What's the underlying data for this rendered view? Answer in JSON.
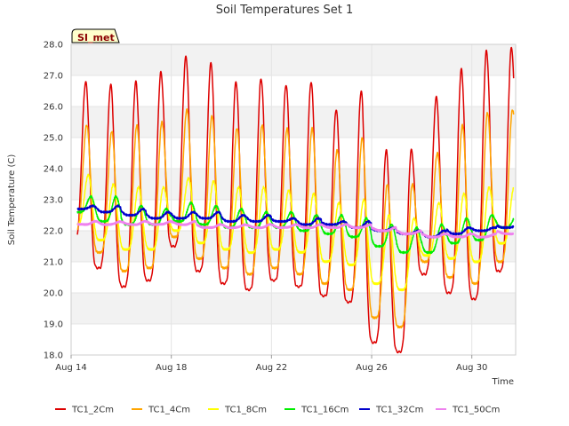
{
  "chart_data": {
    "type": "line",
    "title": "Soil Temperatures Set 1",
    "xlabel": "Time",
    "ylabel": "Soil Temperature (C)",
    "badge": "SI_met",
    "ylim": [
      18.0,
      28.0
    ],
    "yticks": [
      "18.0",
      "19.0",
      "20.0",
      "21.0",
      "22.0",
      "23.0",
      "24.0",
      "25.0",
      "26.0",
      "27.0",
      "28.0"
    ],
    "xlim": [
      "2023-08-14",
      "2023-08-31T18:00"
    ],
    "xticks": [
      {
        "date": "2023-08-14",
        "label": "Aug 14"
      },
      {
        "date": "2023-08-18",
        "label": "Aug 18"
      },
      {
        "date": "2023-08-22",
        "label": "Aug 22"
      },
      {
        "date": "2023-08-26",
        "label": "Aug 26"
      },
      {
        "date": "2023-08-30",
        "label": "Aug 30"
      }
    ],
    "x": [
      "Aug 14",
      "Aug 15",
      "Aug 16",
      "Aug 17",
      "Aug 18",
      "Aug 19",
      "Aug 20",
      "Aug 21",
      "Aug 22",
      "Aug 23",
      "Aug 24",
      "Aug 25",
      "Aug 26",
      "Aug 27",
      "Aug 28",
      "Aug 29",
      "Aug 30",
      "Aug 31"
    ],
    "daily_stats_note_unused": null,
    "series": [
      {
        "name": "TC1_2Cm",
        "color": "#dd0000",
        "daily_max": [
          26.8,
          26.7,
          26.8,
          27.1,
          27.6,
          27.4,
          26.8,
          26.9,
          26.7,
          26.8,
          25.9,
          26.5,
          24.6,
          24.6,
          26.3,
          27.2,
          27.8,
          27.9
        ],
        "daily_min": [
          21.6,
          20.8,
          20.2,
          20.4,
          21.5,
          20.7,
          20.3,
          20.1,
          20.4,
          20.2,
          19.9,
          19.7,
          18.4,
          18.1,
          20.6,
          20.0,
          19.8,
          20.7
        ]
      },
      {
        "name": "TC1_4Cm",
        "color": "#ffa500",
        "daily_max": [
          25.4,
          25.2,
          25.4,
          25.5,
          25.9,
          25.7,
          25.3,
          25.4,
          25.3,
          25.3,
          24.6,
          25.0,
          23.5,
          23.5,
          24.5,
          25.4,
          25.8,
          25.9
        ],
        "daily_min": [
          22.0,
          21.3,
          20.7,
          20.8,
          21.8,
          21.1,
          20.8,
          20.6,
          20.8,
          20.6,
          20.3,
          20.1,
          19.2,
          18.9,
          21.0,
          20.5,
          20.3,
          21.0
        ]
      },
      {
        "name": "TC1_8Cm",
        "color": "#ffff00",
        "daily_max": [
          23.8,
          23.5,
          23.4,
          23.4,
          23.7,
          23.6,
          23.4,
          23.4,
          23.3,
          23.2,
          22.9,
          23.0,
          22.5,
          22.4,
          22.9,
          23.2,
          23.4,
          23.4
        ],
        "daily_min": [
          22.2,
          21.7,
          21.4,
          21.4,
          22.0,
          21.6,
          21.4,
          21.3,
          21.4,
          21.3,
          21.0,
          20.9,
          20.3,
          20.1,
          21.2,
          21.1,
          21.0,
          21.6
        ]
      },
      {
        "name": "TC1_16Cm",
        "color": "#00ee00",
        "daily_max": [
          23.1,
          23.1,
          22.8,
          22.7,
          22.9,
          22.8,
          22.7,
          22.6,
          22.6,
          22.5,
          22.5,
          22.4,
          22.2,
          22.1,
          22.2,
          22.4,
          22.5,
          22.5
        ],
        "daily_min": [
          22.6,
          22.3,
          22.2,
          22.2,
          22.3,
          22.2,
          22.1,
          22.1,
          22.1,
          22.0,
          21.9,
          21.8,
          21.5,
          21.3,
          21.3,
          21.6,
          21.7,
          22.1
        ]
      },
      {
        "name": "TC1_32Cm",
        "color": "#0000cc",
        "daily_max": [
          22.8,
          22.8,
          22.7,
          22.6,
          22.6,
          22.6,
          22.5,
          22.5,
          22.4,
          22.4,
          22.3,
          22.3,
          22.1,
          22.0,
          22.0,
          22.1,
          22.1,
          22.2
        ],
        "daily_min": [
          22.7,
          22.6,
          22.5,
          22.4,
          22.4,
          22.4,
          22.3,
          22.3,
          22.3,
          22.2,
          22.2,
          22.1,
          22.0,
          21.9,
          21.8,
          21.9,
          22.0,
          22.1
        ]
      },
      {
        "name": "TC1_50Cm",
        "color": "#ee82ee",
        "daily_max": [
          22.3,
          22.3,
          22.3,
          22.3,
          22.3,
          22.2,
          22.2,
          22.2,
          22.2,
          22.2,
          22.2,
          22.2,
          22.1,
          22.0,
          21.9,
          21.9,
          21.9,
          22.0
        ],
        "daily_min": [
          22.2,
          22.2,
          22.2,
          22.2,
          22.2,
          22.1,
          22.1,
          22.1,
          22.1,
          22.1,
          22.1,
          22.1,
          22.0,
          21.9,
          21.8,
          21.8,
          21.8,
          21.9
        ]
      }
    ],
    "grid": true,
    "legend": "bottom"
  }
}
